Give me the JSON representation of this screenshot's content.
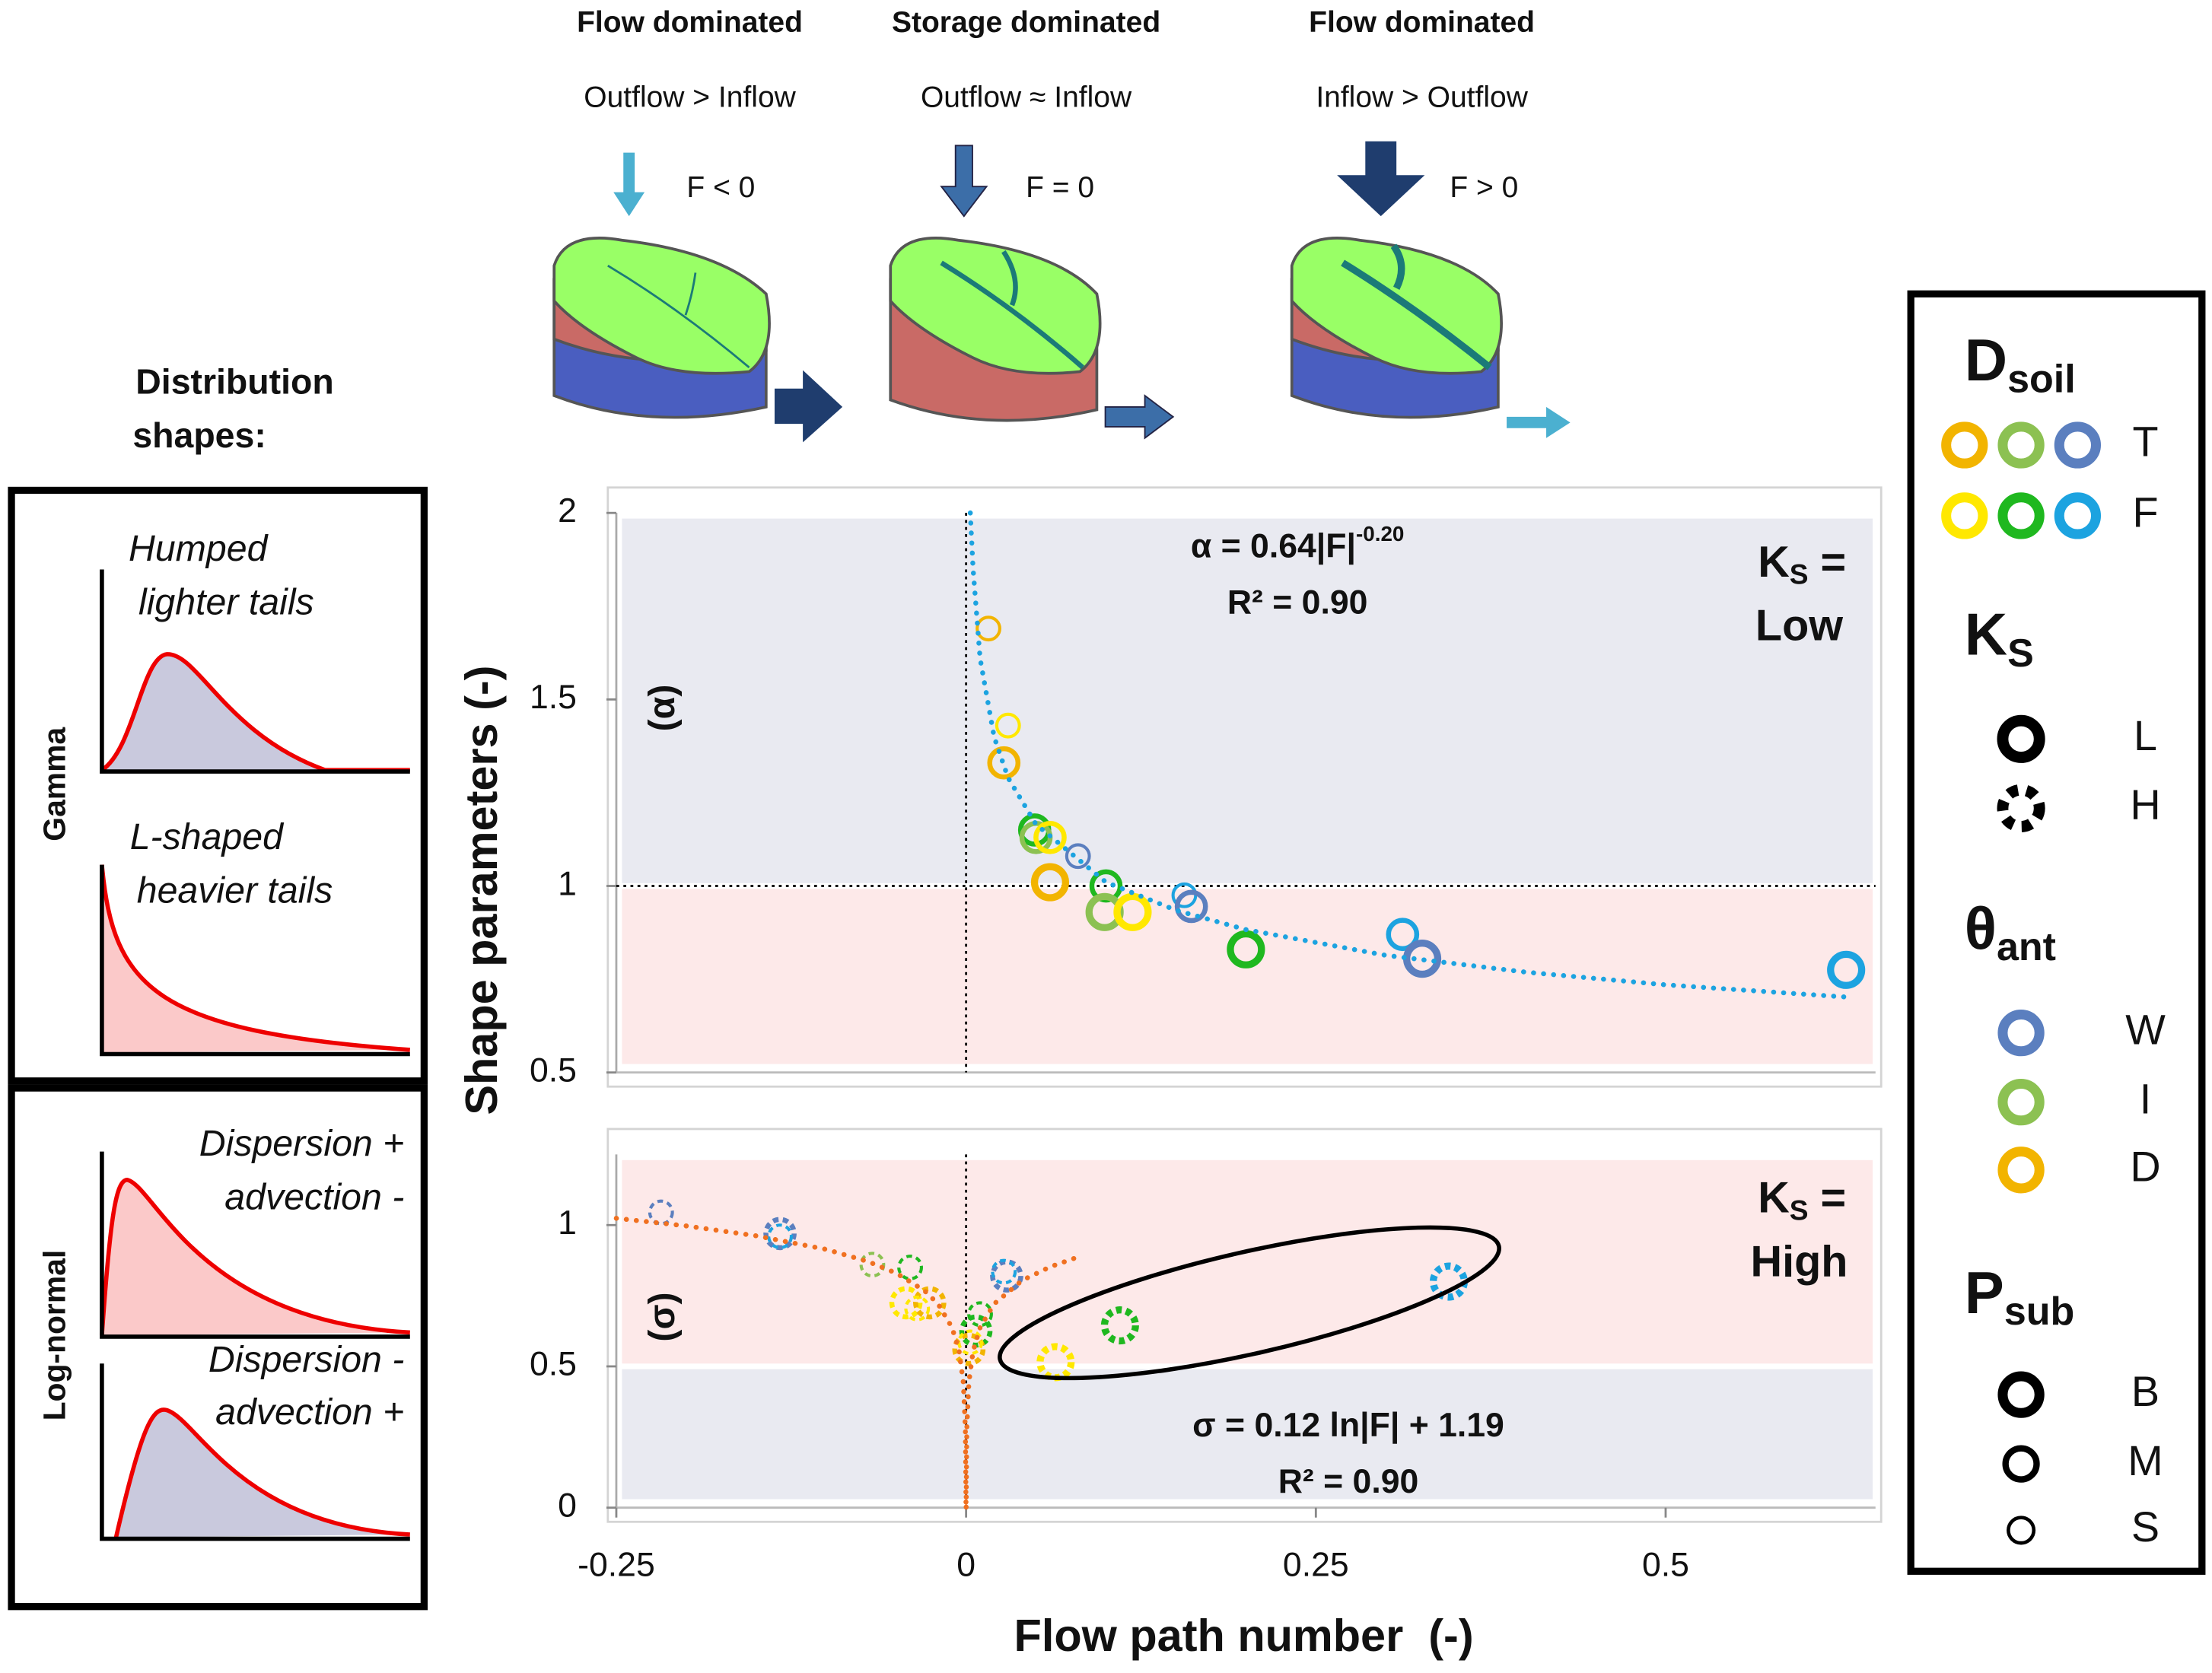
{
  "regimes": [
    {
      "title": "Flow dominated",
      "relation": "Outflow > Inflow",
      "condition": "F < 0"
    },
    {
      "title": "Storage dominated",
      "relation": "Outflow ≈ Inflow",
      "condition": "F = 0"
    },
    {
      "title": "Flow dominated",
      "relation": "Inflow > Outflow",
      "condition": "F > 0"
    }
  ],
  "distribution_shapes": {
    "title": [
      "Distribution",
      "shapes:"
    ],
    "groups": [
      {
        "name": "Gamma",
        "shapes": [
          [
            "Humped",
            "lighter tails"
          ],
          [
            "L-shaped",
            "heavier tails"
          ]
        ]
      },
      {
        "name": "Log-normal",
        "shapes": [
          [
            "Dispersion +",
            "advection -"
          ],
          [
            "Dispersion -",
            "advection +"
          ]
        ]
      }
    ]
  },
  "legend": {
    "sections": [
      {
        "title": "D",
        "sub": "soil",
        "rows": [
          "T",
          "F"
        ]
      },
      {
        "title": "K",
        "sub": "S",
        "rows": [
          "L",
          "H"
        ]
      },
      {
        "title": "θ",
        "sub": "ant",
        "rows": [
          "W",
          "I",
          "D"
        ]
      },
      {
        "title": "P",
        "sub": "sub",
        "rows": [
          "B",
          "M",
          "S"
        ]
      }
    ]
  },
  "chart_data": [
    {
      "type": "scatter",
      "panel_label": "(α)",
      "ylabel": "Shape parameters (-)",
      "corner_label": {
        "main": "K",
        "sub": "S",
        "rest": " =",
        "line2": "Low"
      },
      "equation": {
        "text": "α = 0.64|F|",
        "sup": "-0.20",
        "r2": "R² = 0.90"
      },
      "accent_color": "#1ca3e0",
      "xlim": [
        -0.25,
        0.65
      ],
      "ylim": [
        0.5,
        2
      ],
      "yticks": [
        0.5,
        1,
        1.5,
        2
      ],
      "threshold": 1,
      "zero_line": 0,
      "shade_above": "#e9eaf1",
      "shade_below": "#fde9e9",
      "series": [
        {
          "dashed": false,
          "x": [
            0.016,
            0.03,
            0.027,
            0.049,
            0.05,
            0.06,
            0.08,
            0.06,
            0.1,
            0.099,
            0.119,
            0.156,
            0.161,
            0.2,
            0.312,
            0.326,
            0.629
          ],
          "values": [
            1.69,
            1.43,
            1.33,
            1.15,
            1.13,
            1.13,
            1.08,
            1.01,
            1.0,
            0.93,
            0.93,
            0.975,
            0.945,
            0.83,
            0.87,
            0.805,
            0.775
          ],
          "colors": [
            "#f2b400",
            "#ffe800",
            "#f2b400",
            "#1fb81f",
            "#8cc152",
            "#ffe800",
            "#5b7fbf",
            "#f2b400",
            "#1fb81f",
            "#8cc152",
            "#ffe800",
            "#1ca3e0",
            "#5b7fbf",
            "#1fb81f",
            "#1ca3e0",
            "#5b7fbf",
            "#1ca3e0"
          ],
          "sizes": [
            "S",
            "S",
            "M",
            "M",
            "M",
            "M",
            "S",
            "B",
            "M",
            "B",
            "B",
            "S",
            "M",
            "B",
            "M",
            "B",
            "B"
          ]
        },
        {
          "style": "dotted",
          "color": "#1ca3e0",
          "x": [
            0.003,
            0.005,
            0.01,
            0.02,
            0.03,
            0.05,
            0.1,
            0.15,
            0.2,
            0.3,
            0.4,
            0.5,
            0.63
          ],
          "values": [
            2.0,
            1.85,
            1.61,
            1.4,
            1.29,
            1.165,
            1.01,
            0.935,
            0.883,
            0.814,
            0.769,
            0.735,
            0.702
          ]
        }
      ]
    },
    {
      "type": "scatter",
      "panel_label": "(σ)",
      "xlabel": "Flow path number  (-)",
      "corner_label": {
        "main": "K",
        "sub": "S",
        "rest": " =",
        "line2": "High"
      },
      "equation": {
        "text": "σ = 0.12 ln|F| + 1.19",
        "r2": "R² = 0.90"
      },
      "accent_color": "#f07020",
      "xlim": [
        -0.25,
        0.65
      ],
      "ylim": [
        0,
        1.25
      ],
      "xticks": [
        -0.25,
        0,
        0.25,
        0.5
      ],
      "yticks": [
        0,
        0.5,
        1
      ],
      "threshold": 0.5,
      "zero_line": 0,
      "shade_above": "#fde9e9",
      "shade_below": "#e9eaf1",
      "series": [
        {
          "dashed": true,
          "x": [
            -0.218,
            -0.133,
            -0.133,
            -0.067,
            -0.04,
            -0.043,
            -0.026,
            -0.035,
            0.01,
            0.007,
            0.002,
            0.003,
            0.029,
            0.027,
            0.11,
            0.064,
            0.345
          ],
          "values": [
            1.045,
            0.97,
            0.96,
            0.86,
            0.85,
            0.725,
            0.725,
            0.705,
            0.685,
            0.625,
            0.56,
            0.585,
            0.82,
            0.835,
            0.645,
            0.515,
            0.8
          ],
          "colors": [
            "#5b7fbf",
            "#5b7fbf",
            "#1ca3e0",
            "#8cc152",
            "#1fb81f",
            "#ffe800",
            "#f2b400",
            "#ffe800",
            "#1fb81f",
            "#1fb81f",
            "#f2b400",
            "#ffe800",
            "#5b7fbf",
            "#1ca3e0",
            "#1fb81f",
            "#ffe800",
            "#1ca3e0"
          ],
          "sizes": [
            "S",
            "M",
            "S",
            "S",
            "S",
            "M",
            "M",
            "S",
            "S",
            "M",
            "M",
            "S",
            "M",
            "S",
            "B",
            "B",
            "B"
          ]
        },
        {
          "style": "dotted",
          "color": "#f07020",
          "x": [
            -0.25,
            -0.2,
            -0.15,
            -0.1,
            -0.07,
            -0.05,
            -0.03,
            -0.02,
            -0.01,
            -0.005,
            -0.002,
            -0.0005,
            -5e-05,
            null,
            5e-05,
            0.0005,
            0.002,
            0.005,
            0.01,
            0.02,
            0.04,
            0.06,
            0.08
          ],
          "values": [
            1.024,
            0.997,
            0.962,
            0.914,
            0.871,
            0.83,
            0.769,
            0.721,
            0.637,
            0.554,
            0.444,
            0.278,
            0.002,
            null,
            0.002,
            0.278,
            0.444,
            0.554,
            0.637,
            0.721,
            0.804,
            0.852,
            0.887
          ]
        }
      ]
    }
  ]
}
